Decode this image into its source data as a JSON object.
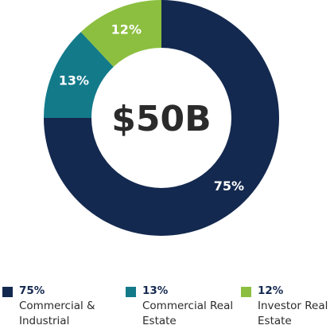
{
  "chart_data": {
    "type": "donut",
    "center_label": "$50B",
    "categories": [
      "Commercial & Industrial",
      "Commercial Real Estate",
      "Investor Real Estate"
    ],
    "values": [
      75,
      13,
      12
    ],
    "value_labels": [
      "75%",
      "13%",
      "12%"
    ],
    "colors": [
      "#14294f",
      "#137a8a",
      "#8cbf3f"
    ]
  }
}
